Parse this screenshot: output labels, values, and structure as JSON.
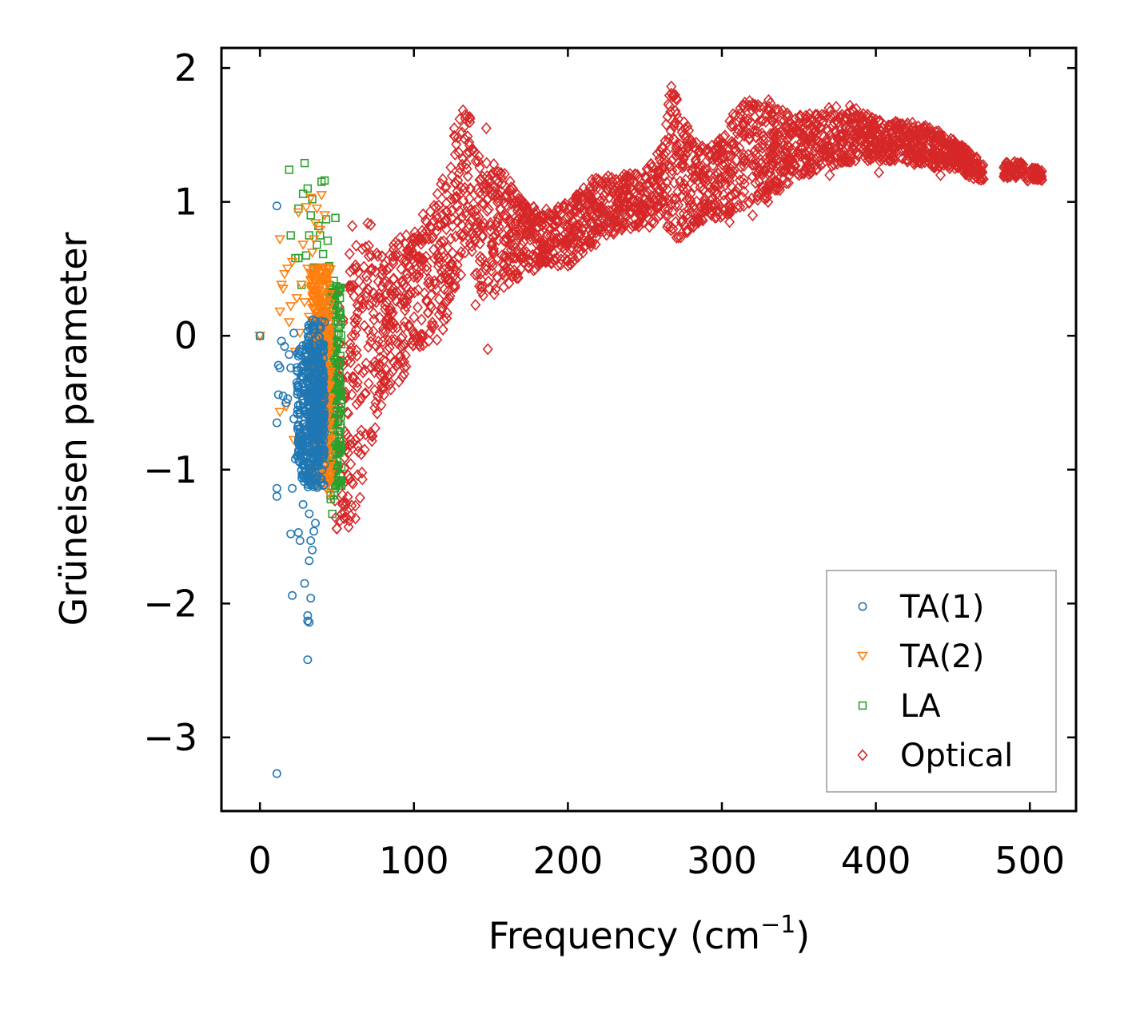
{
  "chart_data": {
    "type": "scatter",
    "title": "",
    "xlabel": "Frequency (cm",
    "xlabel_sup": "−1",
    "xlabel_close": ")",
    "ylabel": "Grüneisen parameter",
    "xlim": [
      -25,
      530
    ],
    "ylim": [
      -3.55,
      2.15
    ],
    "xticks": [
      0,
      100,
      200,
      300,
      400,
      500
    ],
    "xtick_labels": [
      "0",
      "100",
      "200",
      "300",
      "400",
      "500"
    ],
    "yticks": [
      2,
      1,
      0,
      -1,
      -2,
      -3
    ],
    "ytick_labels": [
      "2",
      "1",
      "0",
      "−1",
      "−2",
      "−3"
    ],
    "grid": false,
    "legend_position": "bottom-right",
    "series": [
      {
        "name": "TA(1)",
        "marker": "circle",
        "color": "#1f77b4",
        "points": [
          [
            0,
            0
          ],
          [
            11,
            0.97
          ],
          [
            11,
            -3.27
          ],
          [
            11,
            -1.14
          ],
          [
            11,
            -1.2
          ],
          [
            11,
            -0.65
          ],
          [
            12,
            -0.44
          ],
          [
            12,
            -0.22
          ],
          [
            13,
            -0.24
          ],
          [
            14,
            -0.04
          ],
          [
            15,
            -0.45
          ],
          [
            16,
            -0.08
          ],
          [
            17,
            -0.5
          ],
          [
            18,
            -0.47
          ],
          [
            19,
            -0.14
          ],
          [
            20,
            -0.24
          ],
          [
            20,
            -1.48
          ],
          [
            21,
            -1.14
          ],
          [
            21,
            -1.94
          ],
          [
            22,
            0.02
          ],
          [
            22,
            -0.62
          ],
          [
            23,
            -0.92
          ],
          [
            24,
            -0.35
          ],
          [
            25,
            -1.47
          ],
          [
            25,
            -0.86
          ],
          [
            26,
            -0.14
          ],
          [
            26,
            -1.53
          ],
          [
            28,
            -0.31
          ],
          [
            28,
            -1.26
          ],
          [
            29,
            -1.85
          ],
          [
            30,
            -0.78
          ],
          [
            31,
            -2.42
          ],
          [
            31,
            -2.09
          ],
          [
            31,
            -2.13
          ],
          [
            32,
            -2.14
          ],
          [
            32,
            -1.33
          ],
          [
            32,
            -1.68
          ],
          [
            33,
            -1.96
          ],
          [
            33,
            -1.53
          ],
          [
            34,
            -1.6
          ],
          [
            34,
            -1.09
          ],
          [
            35,
            -0.38
          ],
          [
            35,
            -1.46
          ],
          [
            36,
            -1.4
          ],
          [
            36,
            0.11
          ],
          [
            37,
            -0.12
          ],
          [
            38,
            -0.92
          ],
          [
            39,
            -0.65
          ],
          [
            40,
            -0.25
          ],
          [
            41,
            -0.08
          ],
          [
            42,
            -0.72
          ]
        ],
        "bands": [
          {
            "x": [
              24,
              33
            ],
            "y": [
              -0.05,
              -1.1
            ],
            "n": 160
          },
          {
            "x": [
              31,
              42
            ],
            "y": [
              0.12,
              -1.15
            ],
            "n": 260
          },
          {
            "x": [
              33,
              41
            ],
            "y": [
              -0.2,
              -0.9
            ],
            "n": 120
          }
        ]
      },
      {
        "name": "TA(2)",
        "marker": "triangle-down",
        "color": "#ff7f0e",
        "points": [
          [
            0,
            0
          ],
          [
            13,
            0.72
          ],
          [
            13,
            0.18
          ],
          [
            13,
            -0.57
          ],
          [
            14,
            0.38
          ],
          [
            15,
            0.35
          ],
          [
            16,
            0.46
          ],
          [
            17,
            -0.53
          ],
          [
            18,
            0.5
          ],
          [
            19,
            0.1
          ],
          [
            20,
            0.22
          ],
          [
            21,
            0.55
          ],
          [
            22,
            -0.78
          ],
          [
            23,
            -0.12
          ],
          [
            24,
            0.28
          ],
          [
            25,
            0.92
          ],
          [
            26,
            0.02
          ],
          [
            27,
            0.38
          ],
          [
            28,
            0.68
          ],
          [
            29,
            0.25
          ],
          [
            30,
            0.96
          ],
          [
            31,
            0.5
          ],
          [
            32,
            0.14
          ],
          [
            33,
            1.03
          ],
          [
            34,
            0.62
          ],
          [
            35,
            0.72
          ],
          [
            36,
            0.84
          ],
          [
            37,
            0.95
          ],
          [
            38,
            0.34
          ],
          [
            39,
            0.79
          ],
          [
            40,
            1.05
          ],
          [
            41,
            0.51
          ],
          [
            42,
            0.9
          ],
          [
            43,
            0.41
          ],
          [
            44,
            -1.12
          ],
          [
            45,
            -1.18
          ],
          [
            46,
            -0.95
          ]
        ],
        "bands": [
          {
            "x": [
              33,
              46
            ],
            "y": [
              0.52,
              -1.12
            ],
            "n": 300
          },
          {
            "x": [
              36,
              45
            ],
            "y": [
              0.3,
              -0.7
            ],
            "n": 140
          }
        ]
      },
      {
        "name": "LA",
        "marker": "square",
        "color": "#2ca02c",
        "points": [
          [
            0,
            0
          ],
          [
            19,
            1.24
          ],
          [
            20,
            0.75
          ],
          [
            23,
            0.58
          ],
          [
            25,
            0.58
          ],
          [
            25,
            0.95
          ],
          [
            27,
            0.38
          ],
          [
            28,
            1.06
          ],
          [
            29,
            1.29
          ],
          [
            30,
            0.6
          ],
          [
            31,
            1.1
          ],
          [
            32,
            0.75
          ],
          [
            33,
            0.9
          ],
          [
            34,
            1.02
          ],
          [
            35,
            0.51
          ],
          [
            36,
            0.44
          ],
          [
            37,
            0.68
          ],
          [
            38,
            0.82
          ],
          [
            39,
            0.75
          ],
          [
            40,
            1.15
          ],
          [
            41,
            0.61
          ],
          [
            42,
            1.16
          ],
          [
            43,
            0.87
          ],
          [
            44,
            0.71
          ],
          [
            45,
            0.52
          ],
          [
            46,
            -1.22
          ],
          [
            47,
            -1.33
          ],
          [
            48,
            0.41
          ],
          [
            49,
            0.88
          ],
          [
            50,
            -0.88
          ],
          [
            51,
            -0.4
          ]
        ],
        "bands": [
          {
            "x": [
              45,
              53
            ],
            "y": [
              0.38,
              -1.2
            ],
            "n": 200
          }
        ]
      },
      {
        "name": "Optical",
        "marker": "diamond",
        "color": "#d62728",
        "points": [
          [
            50,
            -1.44
          ],
          [
            52,
            -1.38
          ],
          [
            55,
            -1.32
          ],
          [
            56,
            -1.25
          ],
          [
            58,
            -1.38
          ],
          [
            60,
            0.82
          ],
          [
            62,
            -1.27
          ],
          [
            65,
            -1.21
          ],
          [
            70,
            0.84
          ],
          [
            72,
            0.83
          ],
          [
            85,
            -0.4
          ],
          [
            95,
            0.75
          ],
          [
            110,
            0.4
          ],
          [
            115,
            -0.03
          ],
          [
            140,
            0.23
          ],
          [
            145,
            0.3
          ],
          [
            148,
            -0.1
          ],
          [
            147,
            1.55
          ],
          [
            151,
            0.55
          ],
          [
            160,
            0.5
          ],
          [
            180,
            0.88
          ],
          [
            205,
            0.7
          ],
          [
            240,
            0.92
          ],
          [
            270,
            0.85
          ],
          [
            305,
            0.85
          ],
          [
            320,
            0.9
          ],
          [
            330,
            1.0
          ],
          [
            335,
            1.15
          ],
          [
            345,
            1.25
          ],
          [
            360,
            1.3
          ],
          [
            370,
            1.2
          ],
          [
            378,
            1.35
          ],
          [
            395,
            1.38
          ],
          [
            402,
            1.22
          ],
          [
            425,
            1.28
          ],
          [
            442,
            1.2
          ],
          [
            455,
            1.27
          ]
        ],
        "envelope": [
          [
            48,
            0.35,
            -1.48
          ],
          [
            55,
            0.55,
            -1.45
          ],
          [
            60,
            0.7,
            -1.42
          ],
          [
            65,
            0.65,
            -1.3
          ],
          [
            70,
            0.7,
            -0.9
          ],
          [
            80,
            0.62,
            -0.5
          ],
          [
            90,
            0.75,
            -0.35
          ],
          [
            100,
            0.78,
            -0.18
          ],
          [
            110,
            1.0,
            -0.05
          ],
          [
            120,
            1.2,
            0.05
          ],
          [
            126,
            1.55,
            0.3
          ],
          [
            131,
            1.7,
            0.45
          ],
          [
            136,
            1.68,
            0.5
          ],
          [
            142,
            1.35,
            0.35
          ],
          [
            150,
            1.32,
            0.25
          ],
          [
            160,
            1.2,
            0.38
          ],
          [
            170,
            1.02,
            0.42
          ],
          [
            185,
            0.95,
            0.55
          ],
          [
            200,
            1.0,
            0.5
          ],
          [
            210,
            1.12,
            0.6
          ],
          [
            220,
            1.2,
            0.7
          ],
          [
            235,
            1.2,
            0.78
          ],
          [
            250,
            1.25,
            0.8
          ],
          [
            262,
            1.42,
            0.85
          ],
          [
            267,
            1.9,
            0.75
          ],
          [
            272,
            1.72,
            0.72
          ],
          [
            280,
            1.5,
            0.78
          ],
          [
            290,
            1.4,
            0.88
          ],
          [
            300,
            1.5,
            0.88
          ],
          [
            310,
            1.72,
            0.95
          ],
          [
            322,
            1.78,
            1.0
          ],
          [
            335,
            1.75,
            1.05
          ],
          [
            345,
            1.65,
            1.15
          ],
          [
            355,
            1.65,
            1.2
          ],
          [
            365,
            1.68,
            1.25
          ],
          [
            378,
            1.75,
            1.28
          ],
          [
            390,
            1.68,
            1.3
          ],
          [
            405,
            1.6,
            1.3
          ],
          [
            420,
            1.6,
            1.3
          ],
          [
            440,
            1.55,
            1.25
          ],
          [
            452,
            1.45,
            1.25
          ],
          [
            462,
            1.38,
            1.18
          ],
          [
            470,
            1.28,
            1.15
          ]
        ],
        "envelope_n": 2600,
        "clusters": [
          {
            "x": [
              483,
              496
            ],
            "y": [
              1.18,
              1.3
            ],
            "n": 60
          },
          {
            "x": [
              498,
              508
            ],
            "y": [
              1.16,
              1.25
            ],
            "n": 45
          }
        ]
      }
    ]
  }
}
